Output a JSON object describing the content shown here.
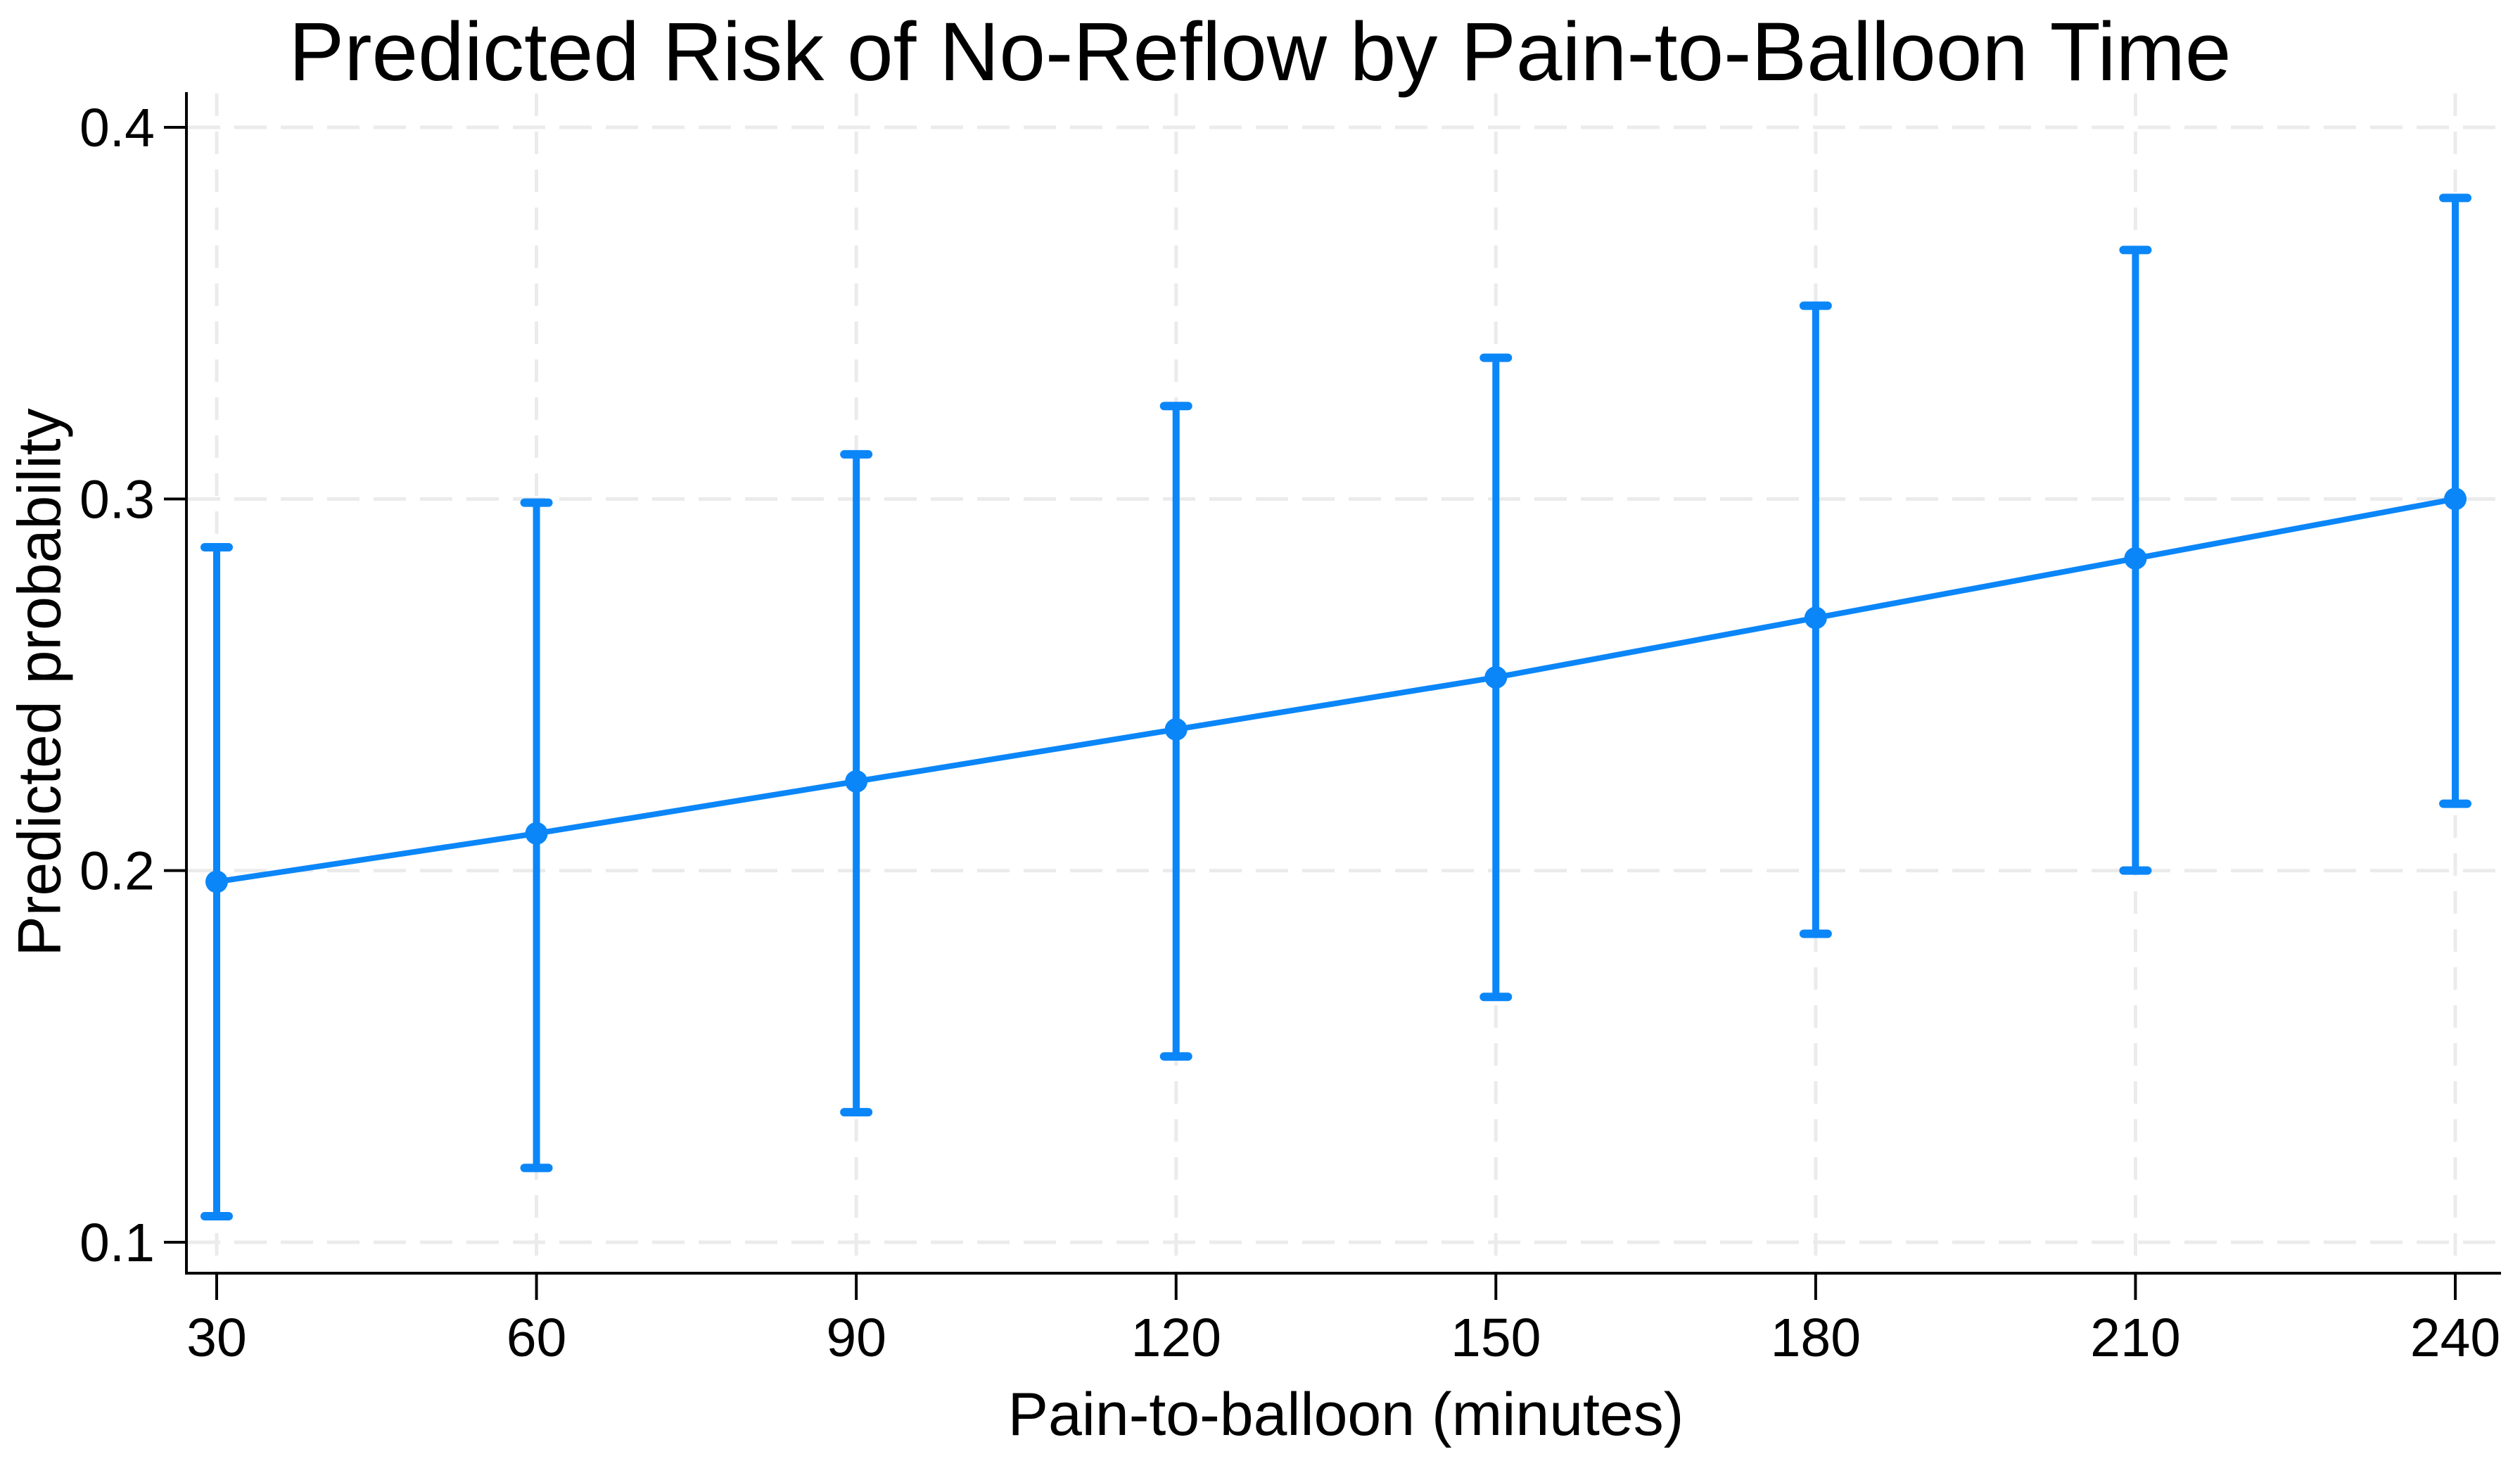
{
  "colors": {
    "line": "#0B86F8",
    "axis": "#000000",
    "grid": "#EBEBEB",
    "background": "#FFFFFF"
  },
  "chart_data": {
    "type": "line",
    "title": "Predicted Risk of No-Reflow by Pain-to-Balloon Time",
    "xlabel": "Pain-to-balloon (minutes)",
    "ylabel": "Predicted probability",
    "x": [
      30,
      60,
      90,
      120,
      150,
      180,
      210,
      240
    ],
    "series": [
      {
        "name": "Predicted probability of no-reflow",
        "values": [
          0.197,
          0.21,
          0.224,
          0.238,
          0.252,
          0.268,
          0.284,
          0.3
        ]
      }
    ],
    "ci_low": [
      0.107,
      0.12,
      0.135,
      0.15,
      0.166,
      0.183,
      0.2,
      0.218
    ],
    "ci_high": [
      0.287,
      0.299,
      0.312,
      0.325,
      0.338,
      0.352,
      0.367,
      0.381
    ],
    "error_bars": "95% confidence interval with caps",
    "marker": "filled-circle",
    "x_ticks": [
      {
        "value": 30,
        "label": "30"
      },
      {
        "value": 60,
        "label": "60"
      },
      {
        "value": 90,
        "label": "90"
      },
      {
        "value": 120,
        "label": "120"
      },
      {
        "value": 150,
        "label": "150"
      },
      {
        "value": 180,
        "label": "180"
      },
      {
        "value": 210,
        "label": "210"
      },
      {
        "value": 240,
        "label": "240"
      }
    ],
    "y_ticks": [
      {
        "value": 0.1,
        "label": "0.1"
      },
      {
        "value": 0.2,
        "label": "0.2"
      },
      {
        "value": 0.3,
        "label": "0.3"
      },
      {
        "value": 0.4,
        "label": "0.4"
      }
    ],
    "xlim": [
      27,
      244
    ],
    "ylim": [
      0.092,
      0.409
    ],
    "grid": "dashed, both axes, light gray",
    "legend": "none"
  }
}
